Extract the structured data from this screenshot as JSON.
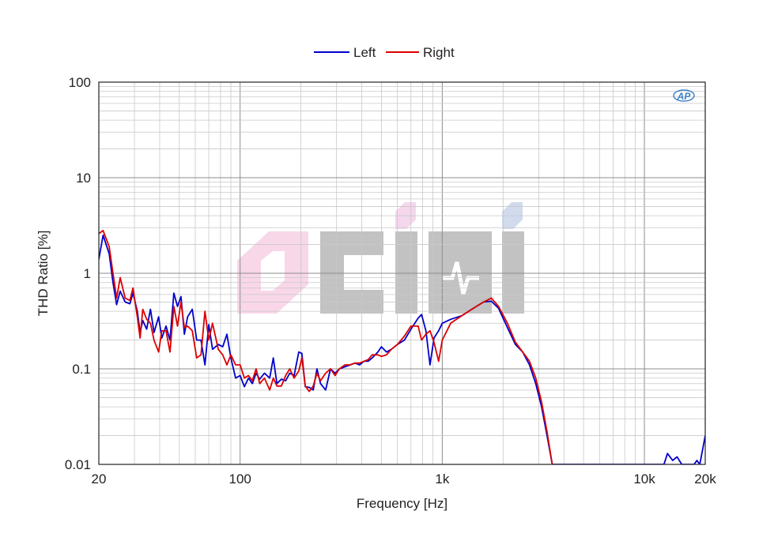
{
  "chart_data": {
    "type": "line",
    "xlabel": "Frequency [Hz]",
    "ylabel": "THD Ratio [%]",
    "x_scale": "log",
    "y_scale": "log",
    "xlim": [
      20,
      20000
    ],
    "ylim": [
      0.01,
      100
    ],
    "grid": true,
    "legend_placement": "top-center",
    "x_tick_labels": [
      {
        "value": 20,
        "label": "20"
      },
      {
        "value": 100,
        "label": "100"
      },
      {
        "value": 1000,
        "label": "1k"
      },
      {
        "value": 10000,
        "label": "10k"
      },
      {
        "value": 20000,
        "label": "20k"
      }
    ],
    "y_tick_labels": [
      {
        "value": 100,
        "label": "100"
      },
      {
        "value": 10,
        "label": "10"
      },
      {
        "value": 1,
        "label": "1"
      },
      {
        "value": 0.1,
        "label": "0.1"
      },
      {
        "value": 0.01,
        "label": "0.01"
      }
    ],
    "logo_text": "AP",
    "watermark_text": "CIHI",
    "series": [
      {
        "name": "Left",
        "color": "#0000cc",
        "points": [
          [
            20,
            1.4
          ],
          [
            21,
            2.5
          ],
          [
            22.5,
            1.6
          ],
          [
            23.5,
            0.8
          ],
          [
            24.5,
            0.47
          ],
          [
            25.5,
            0.65
          ],
          [
            27,
            0.5
          ],
          [
            28.5,
            0.48
          ],
          [
            29.5,
            0.62
          ],
          [
            31,
            0.4
          ],
          [
            32,
            0.24
          ],
          [
            33,
            0.32
          ],
          [
            34.5,
            0.26
          ],
          [
            36,
            0.42
          ],
          [
            37.5,
            0.24
          ],
          [
            39.5,
            0.35
          ],
          [
            41,
            0.21
          ],
          [
            43,
            0.28
          ],
          [
            45,
            0.2
          ],
          [
            47,
            0.62
          ],
          [
            49,
            0.45
          ],
          [
            51,
            0.57
          ],
          [
            53,
            0.23
          ],
          [
            55,
            0.35
          ],
          [
            58,
            0.42
          ],
          [
            61,
            0.2
          ],
          [
            64,
            0.2
          ],
          [
            67,
            0.11
          ],
          [
            70,
            0.29
          ],
          [
            73,
            0.16
          ],
          [
            78,
            0.18
          ],
          [
            82,
            0.17
          ],
          [
            86,
            0.23
          ],
          [
            90,
            0.13
          ],
          [
            95,
            0.08
          ],
          [
            100,
            0.085
          ],
          [
            105,
            0.065
          ],
          [
            110,
            0.08
          ],
          [
            115,
            0.07
          ],
          [
            120,
            0.09
          ],
          [
            125,
            0.078
          ],
          [
            132,
            0.09
          ],
          [
            140,
            0.08
          ],
          [
            146,
            0.13
          ],
          [
            152,
            0.07
          ],
          [
            160,
            0.078
          ],
          [
            168,
            0.075
          ],
          [
            176,
            0.09
          ],
          [
            185,
            0.085
          ],
          [
            195,
            0.15
          ],
          [
            202,
            0.145
          ],
          [
            210,
            0.065
          ],
          [
            220,
            0.064
          ],
          [
            230,
            0.06
          ],
          [
            240,
            0.1
          ],
          [
            250,
            0.07
          ],
          [
            265,
            0.06
          ],
          [
            280,
            0.1
          ],
          [
            295,
            0.09
          ],
          [
            310,
            0.1
          ],
          [
            330,
            0.105
          ],
          [
            350,
            0.11
          ],
          [
            370,
            0.115
          ],
          [
            390,
            0.11
          ],
          [
            410,
            0.12
          ],
          [
            430,
            0.12
          ],
          [
            450,
            0.13
          ],
          [
            480,
            0.15
          ],
          [
            500,
            0.17
          ],
          [
            530,
            0.15
          ],
          [
            560,
            0.16
          ],
          [
            600,
            0.18
          ],
          [
            650,
            0.2
          ],
          [
            700,
            0.26
          ],
          [
            760,
            0.34
          ],
          [
            790,
            0.37
          ],
          [
            830,
            0.25
          ],
          [
            870,
            0.11
          ],
          [
            910,
            0.21
          ],
          [
            960,
            0.25
          ],
          [
            1000,
            0.3
          ],
          [
            1100,
            0.33
          ],
          [
            1250,
            0.36
          ],
          [
            1400,
            0.42
          ],
          [
            1600,
            0.5
          ],
          [
            1750,
            0.51
          ],
          [
            1900,
            0.43
          ],
          [
            2100,
            0.27
          ],
          [
            2300,
            0.18
          ],
          [
            2500,
            0.15
          ],
          [
            2700,
            0.11
          ],
          [
            2900,
            0.07
          ],
          [
            3100,
            0.04
          ],
          [
            3300,
            0.02
          ],
          [
            3500,
            0.01
          ],
          [
            12500,
            0.01
          ],
          [
            13000,
            0.013
          ],
          [
            13800,
            0.011
          ],
          [
            14500,
            0.012
          ],
          [
            15300,
            0.01
          ],
          [
            17600,
            0.01
          ],
          [
            18200,
            0.011
          ],
          [
            18800,
            0.01
          ],
          [
            20000,
            0.02
          ]
        ]
      },
      {
        "name": "Right",
        "color": "#dd0000",
        "points": [
          [
            20,
            2.6
          ],
          [
            21,
            2.8
          ],
          [
            22.5,
            1.9
          ],
          [
            23.5,
            1.0
          ],
          [
            24.5,
            0.55
          ],
          [
            25.5,
            0.9
          ],
          [
            27,
            0.55
          ],
          [
            28.5,
            0.52
          ],
          [
            29.5,
            0.7
          ],
          [
            31,
            0.35
          ],
          [
            32,
            0.21
          ],
          [
            33,
            0.42
          ],
          [
            34.5,
            0.33
          ],
          [
            36,
            0.3
          ],
          [
            37.5,
            0.2
          ],
          [
            39.5,
            0.15
          ],
          [
            41,
            0.25
          ],
          [
            43,
            0.25
          ],
          [
            45,
            0.15
          ],
          [
            47,
            0.45
          ],
          [
            49,
            0.28
          ],
          [
            51,
            0.5
          ],
          [
            53,
            0.27
          ],
          [
            55,
            0.28
          ],
          [
            58,
            0.25
          ],
          [
            61,
            0.13
          ],
          [
            64,
            0.14
          ],
          [
            67,
            0.4
          ],
          [
            70,
            0.2
          ],
          [
            73,
            0.3
          ],
          [
            78,
            0.16
          ],
          [
            82,
            0.14
          ],
          [
            86,
            0.11
          ],
          [
            90,
            0.14
          ],
          [
            95,
            0.11
          ],
          [
            100,
            0.11
          ],
          [
            105,
            0.08
          ],
          [
            110,
            0.085
          ],
          [
            115,
            0.075
          ],
          [
            120,
            0.1
          ],
          [
            125,
            0.07
          ],
          [
            132,
            0.08
          ],
          [
            140,
            0.06
          ],
          [
            146,
            0.08
          ],
          [
            152,
            0.066
          ],
          [
            160,
            0.066
          ],
          [
            168,
            0.085
          ],
          [
            176,
            0.1
          ],
          [
            185,
            0.08
          ],
          [
            195,
            0.095
          ],
          [
            202,
            0.13
          ],
          [
            210,
            0.066
          ],
          [
            220,
            0.058
          ],
          [
            230,
            0.066
          ],
          [
            240,
            0.09
          ],
          [
            250,
            0.075
          ],
          [
            265,
            0.09
          ],
          [
            280,
            0.1
          ],
          [
            295,
            0.085
          ],
          [
            310,
            0.1
          ],
          [
            330,
            0.11
          ],
          [
            350,
            0.11
          ],
          [
            370,
            0.115
          ],
          [
            390,
            0.115
          ],
          [
            410,
            0.12
          ],
          [
            430,
            0.125
          ],
          [
            450,
            0.14
          ],
          [
            480,
            0.14
          ],
          [
            500,
            0.135
          ],
          [
            530,
            0.14
          ],
          [
            560,
            0.16
          ],
          [
            600,
            0.18
          ],
          [
            650,
            0.22
          ],
          [
            700,
            0.28
          ],
          [
            760,
            0.28
          ],
          [
            790,
            0.2
          ],
          [
            830,
            0.23
          ],
          [
            870,
            0.25
          ],
          [
            910,
            0.19
          ],
          [
            960,
            0.12
          ],
          [
            1000,
            0.2
          ],
          [
            1100,
            0.3
          ],
          [
            1250,
            0.36
          ],
          [
            1400,
            0.42
          ],
          [
            1600,
            0.5
          ],
          [
            1750,
            0.55
          ],
          [
            1900,
            0.45
          ],
          [
            2100,
            0.3
          ],
          [
            2300,
            0.19
          ],
          [
            2500,
            0.15
          ],
          [
            2700,
            0.12
          ],
          [
            2900,
            0.08
          ],
          [
            3100,
            0.045
          ],
          [
            3300,
            0.022
          ],
          [
            3500,
            0.01
          ]
        ]
      }
    ]
  }
}
